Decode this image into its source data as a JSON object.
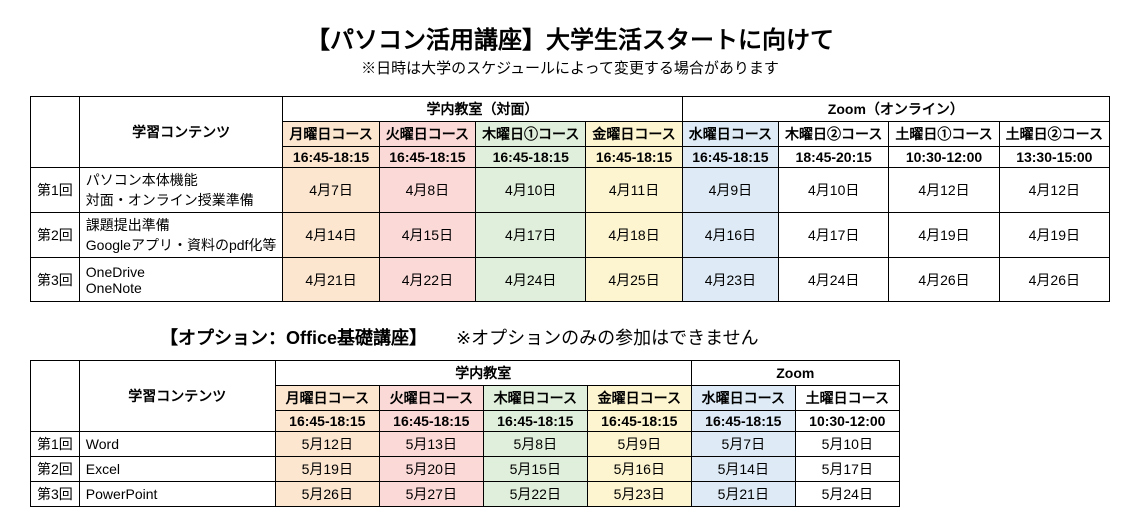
{
  "title": "【パソコン活用講座】大学生活スタートに向けて",
  "note": "※日時は大学のスケジュールによって変更する場合があります",
  "colors": {
    "orange": "#fce6d0",
    "pink": "#fbd9d7",
    "green": "#e0efdb",
    "yellow": "#fdf5d0",
    "blue": "#deebf6",
    "white": "#ffffff"
  },
  "table1": {
    "learning_header": "学習コンテンツ",
    "in_person_header": "学内教室（対面）",
    "online_header": "Zoom（オンライン）",
    "courses": [
      {
        "name": "月曜日コース",
        "time": "16:45-18:15",
        "color": "orange"
      },
      {
        "name": "火曜日コース",
        "time": "16:45-18:15",
        "color": "pink"
      },
      {
        "name": "木曜日①コース",
        "time": "16:45-18:15",
        "color": "green"
      },
      {
        "name": "金曜日コース",
        "time": "16:45-18:15",
        "color": "yellow"
      },
      {
        "name": "水曜日コース",
        "time": "16:45-18:15",
        "color": "blue"
      },
      {
        "name": "木曜日②コース",
        "time": "18:45-20:15",
        "color": "white"
      },
      {
        "name": "土曜日①コース",
        "time": "10:30-12:00",
        "color": "white"
      },
      {
        "name": "土曜日②コース",
        "time": "13:30-15:00",
        "color": "white"
      }
    ],
    "rows": [
      {
        "session": "第1回",
        "content_line1": "パソコン本体機能",
        "content_line2": "対面・オンライン授業準備",
        "dates": [
          "4月7日",
          "4月8日",
          "4月10日",
          "4月11日",
          "4月9日",
          "4月10日",
          "4月12日",
          "4月12日"
        ]
      },
      {
        "session": "第2回",
        "content_line1": "課題提出準備",
        "content_line2": "Googleアプリ・資料のpdf化等",
        "dates": [
          "4月14日",
          "4月15日",
          "4月17日",
          "4月18日",
          "4月16日",
          "4月17日",
          "4月19日",
          "4月19日"
        ]
      },
      {
        "session": "第3回",
        "content_line1": "OneDrive",
        "content_line2": "OneNote",
        "dates": [
          "4月21日",
          "4月22日",
          "4月24日",
          "4月25日",
          "4月23日",
          "4月24日",
          "4月26日",
          "4月26日"
        ]
      }
    ]
  },
  "subheading": {
    "label": "【オプション：Office基礎講座】",
    "note": "※オプションのみの参加はできません"
  },
  "table2": {
    "learning_header": "学習コンテンツ",
    "in_person_header": "学内教室",
    "online_header": "Zoom",
    "courses": [
      {
        "name": "月曜日コース",
        "time": "16:45-18:15",
        "color": "orange"
      },
      {
        "name": "火曜日コース",
        "time": "16:45-18:15",
        "color": "pink"
      },
      {
        "name": "木曜日コース",
        "time": "16:45-18:15",
        "color": "green"
      },
      {
        "name": "金曜日コース",
        "time": "16:45-18:15",
        "color": "yellow"
      },
      {
        "name": "水曜日コース",
        "time": "16:45-18:15",
        "color": "blue"
      },
      {
        "name": "土曜日コース",
        "time": "10:30-12:00",
        "color": "white"
      }
    ],
    "rows": [
      {
        "session": "第1回",
        "content": "Word",
        "dates": [
          "5月12日",
          "5月13日",
          "5月8日",
          "5月9日",
          "5月7日",
          "5月10日"
        ]
      },
      {
        "session": "第2回",
        "content": "Excel",
        "dates": [
          "5月19日",
          "5月20日",
          "5月15日",
          "5月16日",
          "5月14日",
          "5月17日"
        ]
      },
      {
        "session": "第3回",
        "content": "PowerPoint",
        "dates": [
          "5月26日",
          "5月27日",
          "5月22日",
          "5月23日",
          "5月21日",
          "5月24日"
        ]
      }
    ]
  },
  "widths": {
    "session_col": 44,
    "content_col": 196,
    "course_col": 104
  }
}
